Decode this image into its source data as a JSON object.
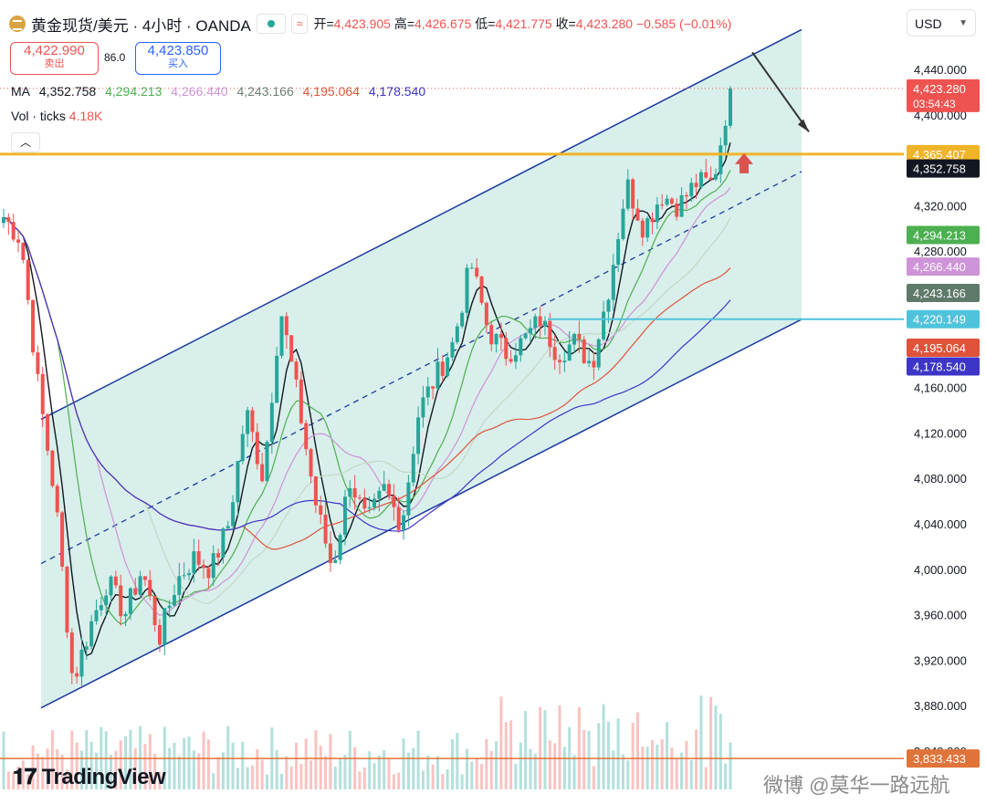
{
  "header": {
    "symbol_title": "黄金现货/美元 · 4小时 · OANDA",
    "btn_1": "⊙",
    "btn_2": "≈",
    "ohlc": [
      {
        "label": "开=",
        "value": "4,423.905"
      },
      {
        "label": "高=",
        "value": "4,426.675"
      },
      {
        "label": "低=",
        "value": "4,421.775"
      },
      {
        "label": "收=",
        "value": "4,423.280"
      }
    ],
    "change": "−0.585 (−0.01%)"
  },
  "trade": {
    "sell_price": "4,422.990",
    "sell_label": "卖出",
    "spread": "86.0",
    "buy_price": "4,423.850",
    "buy_label": "买入"
  },
  "legend": {
    "ma_label": "MA",
    "ma_values": [
      "4,352.758",
      "4,294.213",
      "4,266.440",
      "4,243.166",
      "4,195.064",
      "4,178.540"
    ],
    "vol_label": "Vol · ticks",
    "vol_value": "4.18K",
    "collapse_icon": "chevron-up-icon"
  },
  "currency": {
    "label": "USD",
    "icon": "chevron-down-icon"
  },
  "brand": {
    "name": "TradingView"
  },
  "watermark": "微博 @莫华一路远航",
  "colors": {
    "up": "#26a69a",
    "down": "#ef5350",
    "channel": "#1a3a9e",
    "channel_fill": "#d2ece8",
    "hline_gold": "#f0b429",
    "hline_cyan": "#4fc3dc",
    "ma": [
      "#131722",
      "#4caf50",
      "#ce93d8",
      "#c5d6c5",
      "#e0533a",
      "#3d35c7"
    ],
    "ma_legend": [
      "#131722",
      "#4caf50",
      "#ce93d8",
      "#6b7f72",
      "#e0533a",
      "#3d35c7"
    ]
  },
  "chart_data": {
    "type": "candlestick",
    "ylim": [
      3833,
      4460
    ],
    "y_ticks": [
      3840,
      3880,
      3920,
      3960,
      4000,
      4040,
      4080,
      4120,
      4160,
      4200,
      4240,
      4280,
      4320,
      4360,
      4400,
      4440
    ],
    "y_tick_labels": [
      "3,840.000",
      "3,880.000",
      "3,920.000",
      "3,960.000",
      "4,000.000",
      "4,040.000",
      "4,080.000",
      "4,120.000",
      "4,160.000",
      "4,200.000",
      "4,240.000",
      "4,280.000",
      "4,320.000",
      "4,360.000",
      "4,400.000",
      "4,440.000"
    ],
    "price_anchors": [
      4310,
      4290,
      4160,
      4060,
      3900,
      3950,
      3990,
      3960,
      4000,
      3940,
      3990,
      4010,
      4000,
      4040,
      4140,
      4080,
      4230,
      4150,
      4060,
      4000,
      4080,
      4040,
      4070,
      4040,
      4140,
      4170,
      4200,
      4270,
      4210,
      4190,
      4200,
      4220,
      4190,
      4200,
      4180,
      4250,
      4340,
      4300,
      4330,
      4320,
      4340,
      4340,
      4423
    ],
    "last_price": 4423.28,
    "countdown": "03:54:43",
    "price_labels": [
      {
        "value": 4423.28,
        "text": "4,423.280",
        "sub": "03:54:43",
        "color": "#ef5350"
      },
      {
        "value": 4365.407,
        "text": "4,365.407",
        "color": "#f0b429"
      },
      {
        "value": 4352.758,
        "text": "4,352.758",
        "color": "#131722"
      },
      {
        "value": 4294.213,
        "text": "4,294.213",
        "color": "#4caf50"
      },
      {
        "value": 4266.44,
        "text": "4,266.440",
        "color": "#ce93d8"
      },
      {
        "value": 4243.166,
        "text": "4,243.166",
        "color": "#5f7a6b"
      },
      {
        "value": 4220.149,
        "text": "4,220.149",
        "color": "#4fc3dc"
      },
      {
        "value": 4195.064,
        "text": "4,195.064",
        "color": "#e0533a"
      },
      {
        "value": 4178.54,
        "text": "4,178.540",
        "color": "#3d35c7"
      },
      {
        "value": 3833.433,
        "text": "3,833.433",
        "color": "#e0733a"
      }
    ],
    "horizontal_levels": [
      {
        "value": 4365.407,
        "name": "resistance",
        "color": "#f0b429"
      },
      {
        "value": 4220.149,
        "name": "support",
        "color": "#4fc3dc"
      },
      {
        "value": 3833.433,
        "name": "volume-ma",
        "color": "#e0733a"
      }
    ],
    "channel": {
      "lower_start": 3878,
      "lower_end": 4220,
      "upper_start": 4132,
      "upper_end": 4475,
      "mid_start": 4005,
      "mid_end": 4350
    },
    "annotations": [
      {
        "type": "arrow-down",
        "from": 4455,
        "to": 4385
      },
      {
        "type": "arrow-up",
        "at": 4355
      }
    ]
  }
}
